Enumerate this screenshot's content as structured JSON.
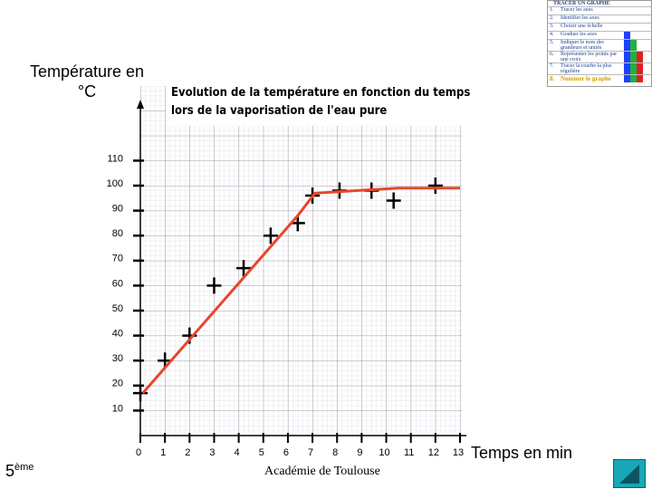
{
  "chart_data": {
    "type": "scatter",
    "title": "Evolution de la température en fonction du temps lors de la vaporisation de l'eau pure",
    "y_label": "Température en °C",
    "x_label": "Temps en min",
    "xlim": [
      0,
      13
    ],
    "xticks": [
      0,
      1,
      2,
      3,
      4,
      5,
      6,
      7,
      8,
      9,
      10,
      11,
      12,
      13
    ],
    "ylim": [
      0,
      130
    ],
    "yticks": [
      10,
      20,
      30,
      40,
      50,
      60,
      70,
      80,
      90,
      100,
      110
    ],
    "grid": true,
    "series": [
      {
        "color": "#000000",
        "marker": "cross",
        "x": [
          0,
          1,
          2,
          3,
          4.2,
          5.3,
          6.4,
          7,
          8.1,
          9.4,
          10.3,
          12
        ],
        "values": [
          17,
          30,
          40,
          60,
          67,
          80,
          85,
          96,
          98,
          98,
          94,
          100
        ]
      },
      {
        "color": "#e8452c",
        "marker": "line",
        "x": [
          0.1,
          6.4,
          7.1,
          10.5,
          13
        ],
        "values": [
          17,
          88,
          97,
          99,
          99
        ]
      }
    ]
  },
  "guide": {
    "title": "TRACER UN GRAPHE",
    "steps": [
      {
        "number": "1.",
        "text": "Tracer les axes"
      },
      {
        "number": "2.",
        "text": "Identifier les axes"
      },
      {
        "number": "3.",
        "text": "Choisir une échelle"
      },
      {
        "number": "4.",
        "text": "Graduer les axes"
      },
      {
        "number": "5.",
        "text": "Indiquer le nom des grandeurs et unités"
      },
      {
        "number": "6.",
        "text": "Représenter les points par une croix"
      },
      {
        "number": "7.",
        "text": "Tracer la courbe la plus régulière"
      },
      {
        "number": "8.",
        "text": "Nommer le graphe"
      }
    ]
  },
  "footer": {
    "academy": "Académie de Toulouse",
    "grade": {
      "number": "5",
      "suffix": "ème"
    }
  }
}
